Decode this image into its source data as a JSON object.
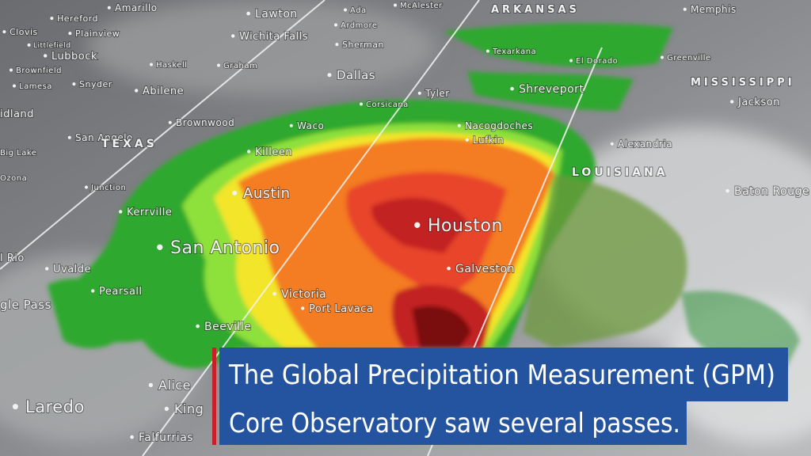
{
  "map": {
    "labels": [
      "Amarillo",
      "Lawton",
      "Ada",
      "McAlester",
      "ARKANSAS",
      "Memphis",
      "Hereford",
      "Clovis",
      "Plainview",
      "Wichita Falls",
      "Ardmore",
      "Sherman",
      "Littlefield",
      "Lubbock",
      "Texarkana",
      "El Dorado",
      "Greenville",
      "Brownfield",
      "Haskell",
      "Graham",
      "Dallas",
      "MISSISSIPPI",
      "Lamesa",
      "Snyder",
      "Abilene",
      "Tyler",
      "Shreveport",
      "Jackson",
      "idland",
      "Corsicana",
      "Brownwood",
      "Waco",
      "Nacogdoches",
      "Lufkin",
      "San Angelo",
      "TEXAS",
      "Killeen",
      "Alexandria",
      "Big Lake",
      "LOUISIANA",
      "Ozona",
      "Junction",
      "Austin",
      "Baton Rouge",
      "Kerrville",
      "Houston",
      "San Antonio",
      "l Rio",
      "Uvalde",
      "Galveston",
      "Pearsall",
      "Victoria",
      "Port Lavaca",
      "gle Pass",
      "Beeville",
      "Alice",
      "Laredo",
      "King",
      "Falfurrias"
    ]
  },
  "caption": {
    "lines": [
      "The Global Precipitation Measurement (GPM)",
      "Core Observatory saw several passes."
    ]
  }
}
